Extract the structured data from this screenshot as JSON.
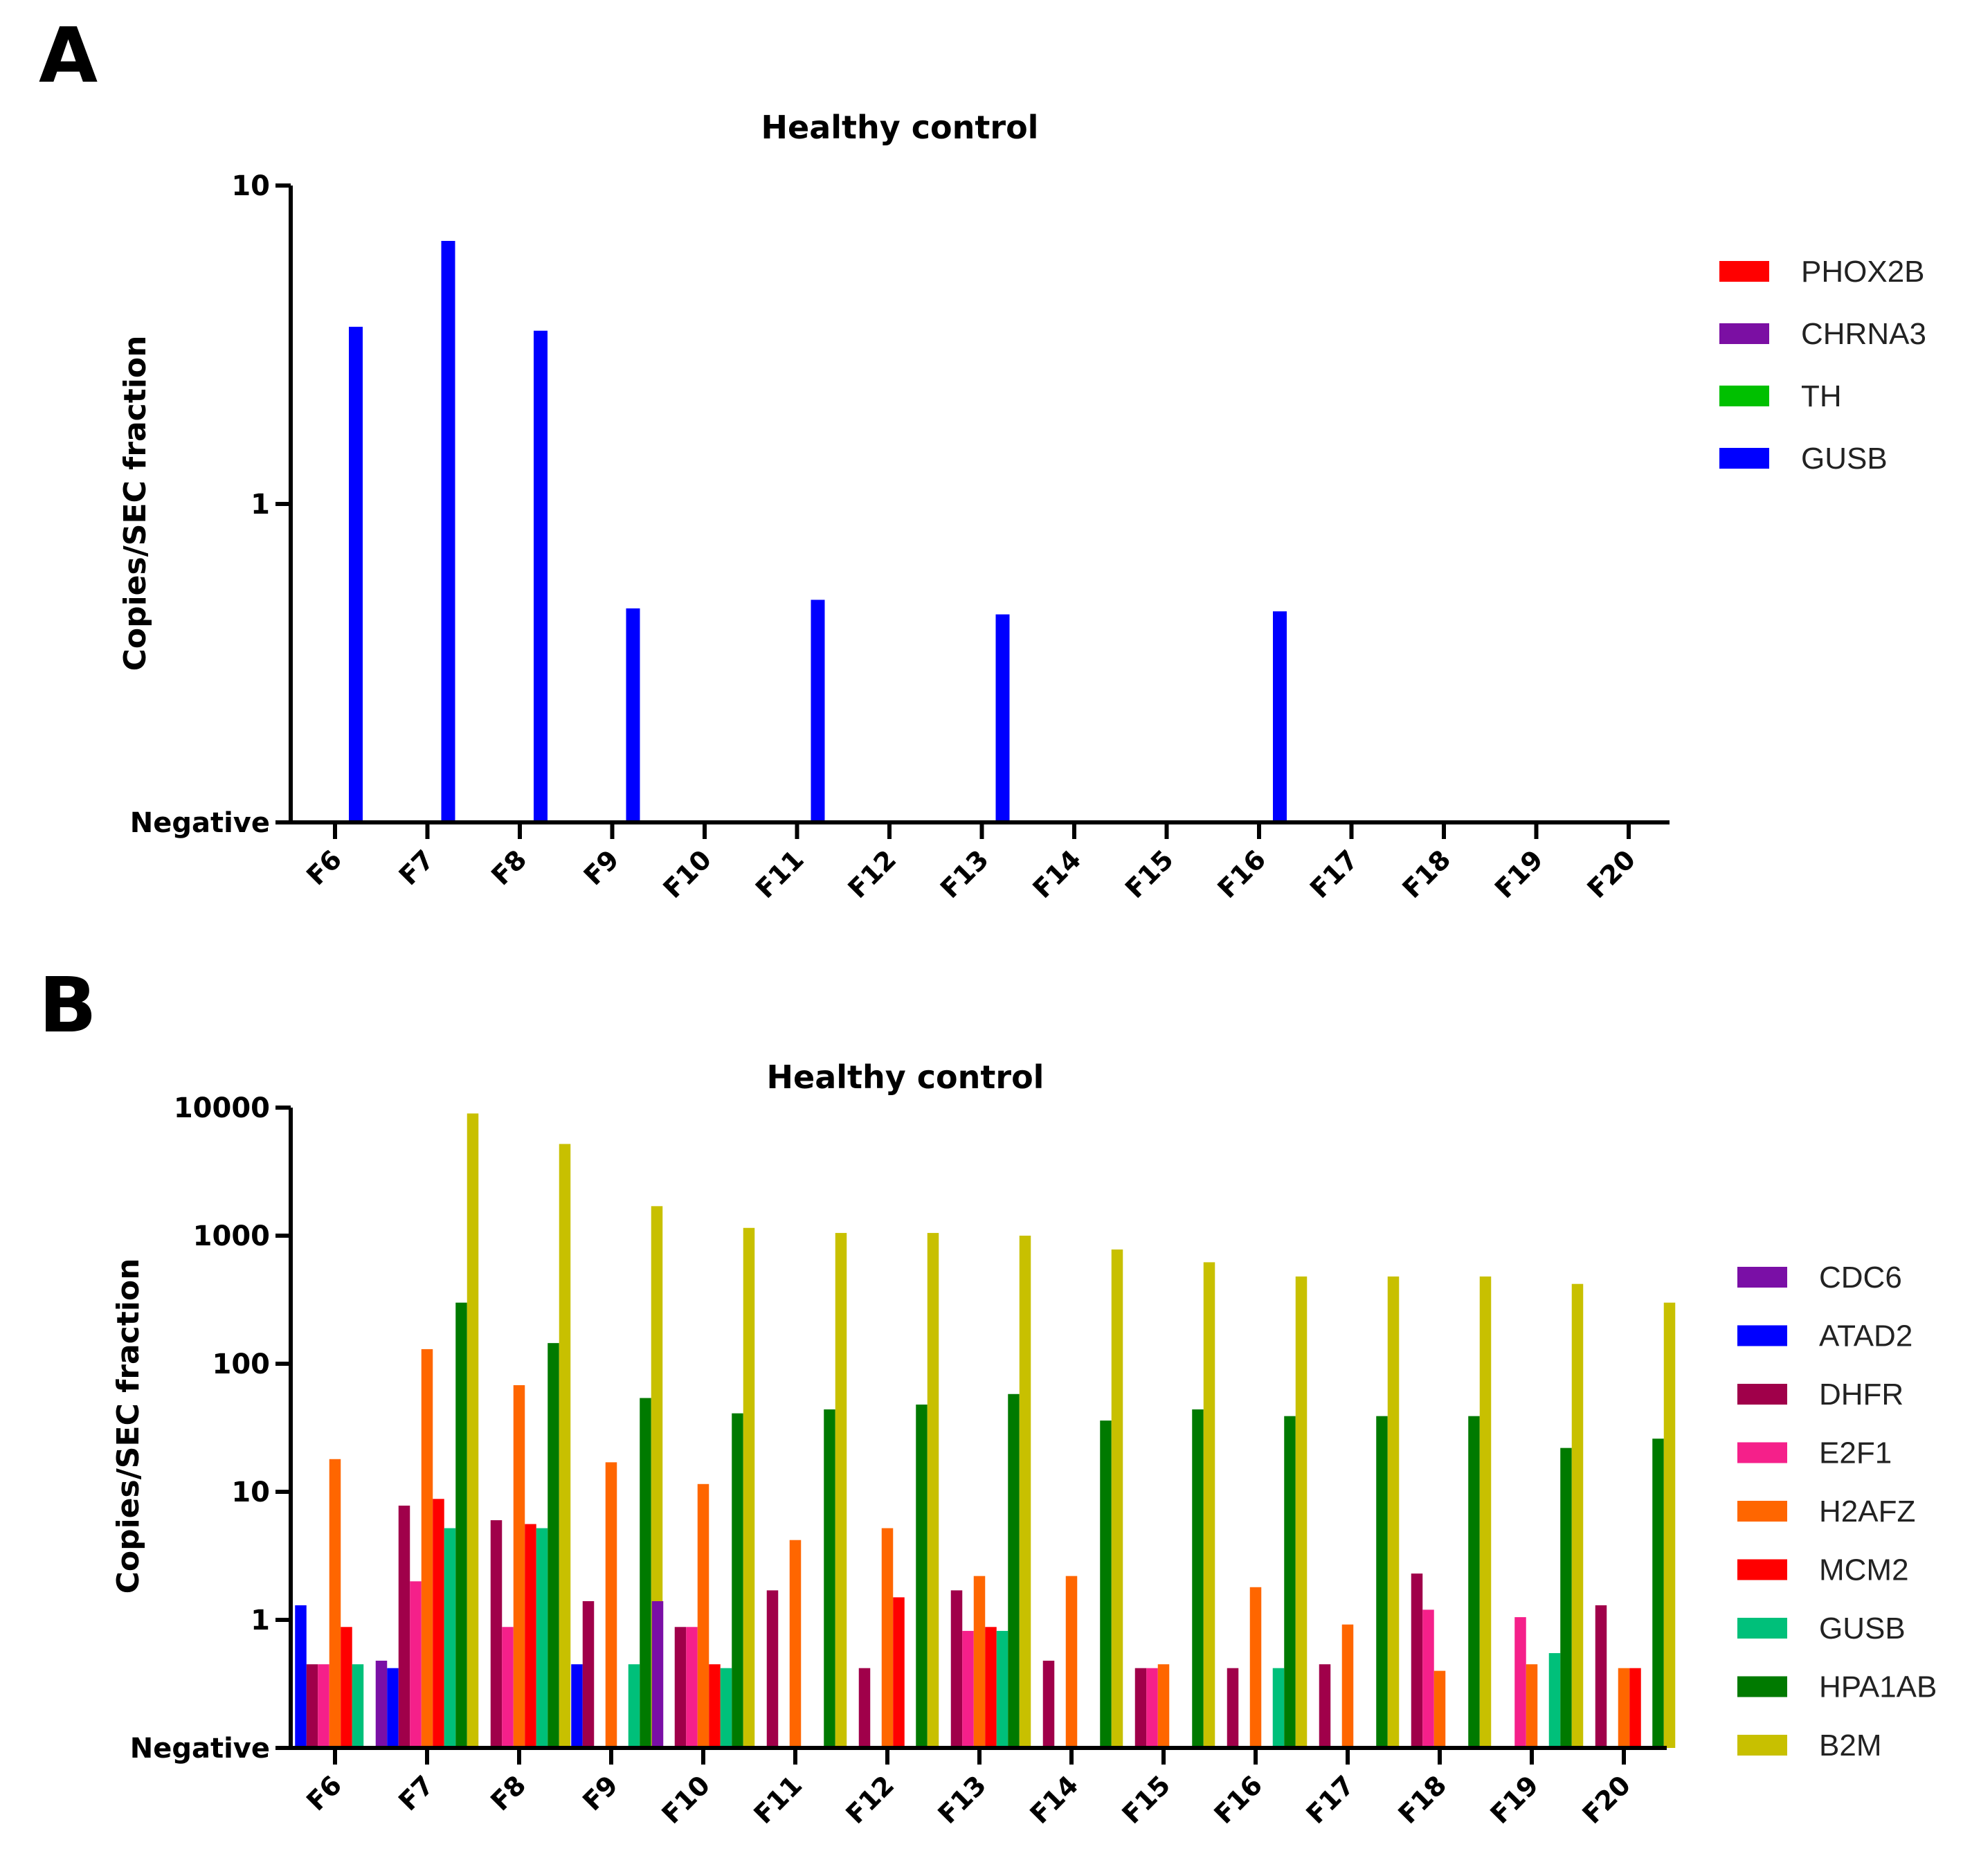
{
  "figure": {
    "panels": [
      "A",
      "B"
    ]
  },
  "chart_data": [
    {
      "type": "bar",
      "panel": "A",
      "title": "Healthy control",
      "xlabel": "",
      "ylabel": "Copies/SEC fraction",
      "yscale": "log",
      "ylim": [
        0.1,
        10
      ],
      "yticks": [
        {
          "value": 0.1,
          "label": "Negative"
        },
        {
          "value": 1,
          "label": "1"
        },
        {
          "value": 10,
          "label": "10"
        }
      ],
      "categories": [
        "F6",
        "F7",
        "F8",
        "F9",
        "F10",
        "F11",
        "F12",
        "F13",
        "F14",
        "F15",
        "F16",
        "F17",
        "F18",
        "F19",
        "F20"
      ],
      "series": [
        {
          "name": "PHOX2B",
          "color": "#ff0000",
          "values": [
            null,
            null,
            null,
            null,
            null,
            null,
            null,
            null,
            null,
            null,
            null,
            null,
            null,
            null,
            null
          ]
        },
        {
          "name": "CHRNA3",
          "color": "#7b0fa3",
          "values": [
            null,
            null,
            null,
            null,
            null,
            null,
            null,
            null,
            null,
            null,
            null,
            null,
            null,
            null,
            null
          ]
        },
        {
          "name": "TH",
          "color": "#00c000",
          "values": [
            null,
            null,
            null,
            null,
            null,
            null,
            null,
            null,
            null,
            null,
            null,
            null,
            null,
            null,
            null
          ]
        },
        {
          "name": "GUSB",
          "color": "#0000ff",
          "values": [
            3.6,
            6.7,
            3.5,
            0.47,
            null,
            0.5,
            null,
            0.45,
            null,
            null,
            0.46,
            null,
            null,
            null,
            null
          ]
        }
      ],
      "legend": "right"
    },
    {
      "type": "bar",
      "panel": "B",
      "title": "Healthy control",
      "xlabel": "",
      "ylabel": "Copies/SEC fraction",
      "yscale": "log",
      "ylim": [
        0.1,
        10000
      ],
      "yticks": [
        {
          "value": 0.1,
          "label": "Negative"
        },
        {
          "value": 1,
          "label": "1"
        },
        {
          "value": 10,
          "label": "10"
        },
        {
          "value": 100,
          "label": "100"
        },
        {
          "value": 1000,
          "label": "1000"
        },
        {
          "value": 10000,
          "label": "10000"
        }
      ],
      "categories": [
        "F6",
        "F7",
        "F8",
        "F9",
        "F10",
        "F11",
        "F12",
        "F13",
        "F14",
        "F15",
        "F16",
        "F17",
        "F18",
        "F19",
        "F20"
      ],
      "series": [
        {
          "name": "CDC6",
          "color": "#7a0fa6",
          "values": [
            null,
            0.48,
            null,
            null,
            1.4,
            null,
            null,
            null,
            null,
            null,
            null,
            null,
            null,
            null,
            null
          ]
        },
        {
          "name": "ATAD2",
          "color": "#0000ff",
          "values": [
            1.3,
            0.42,
            null,
            0.45,
            null,
            null,
            null,
            null,
            null,
            null,
            null,
            null,
            null,
            null,
            null
          ]
        },
        {
          "name": "DHFR",
          "color": "#a0004a",
          "values": [
            0.45,
            7.8,
            6.0,
            1.4,
            0.88,
            1.7,
            0.42,
            1.7,
            0.48,
            0.42,
            0.42,
            0.45,
            2.3,
            null,
            1.3
          ]
        },
        {
          "name": "E2F1",
          "color": "#f5208a",
          "values": [
            0.45,
            2.0,
            0.88,
            null,
            0.88,
            null,
            null,
            0.82,
            null,
            0.42,
            null,
            null,
            1.2,
            1.05,
            null
          ]
        },
        {
          "name": "H2AFZ",
          "color": "#ff6600",
          "values": [
            18,
            130,
            68,
            17,
            11.5,
            4.2,
            5.2,
            2.2,
            2.2,
            0.45,
            1.8,
            0.92,
            0.4,
            0.45,
            0.42
          ]
        },
        {
          "name": "MCM2",
          "color": "#ff0000",
          "values": [
            0.88,
            8.8,
            5.6,
            null,
            0.45,
            null,
            1.5,
            0.88,
            null,
            null,
            null,
            null,
            null,
            null,
            0.42
          ]
        },
        {
          "name": "GUSB",
          "color": "#00c07a",
          "values": [
            0.45,
            5.2,
            5.2,
            0.45,
            0.42,
            null,
            null,
            0.82,
            null,
            null,
            0.42,
            null,
            null,
            0.55,
            null
          ]
        },
        {
          "name": "HPA1AB",
          "color": "#007a00",
          "values": [
            null,
            300,
            145,
            54,
            41,
            44,
            48,
            58,
            36,
            44,
            39,
            39,
            39,
            22,
            26
          ]
        },
        {
          "name": "B2M",
          "color": "#c8c000",
          "values": [
            null,
            9000,
            5200,
            1700,
            1150,
            1050,
            1050,
            1000,
            780,
            620,
            480,
            480,
            480,
            420,
            300
          ]
        }
      ],
      "legend": "right"
    }
  ]
}
